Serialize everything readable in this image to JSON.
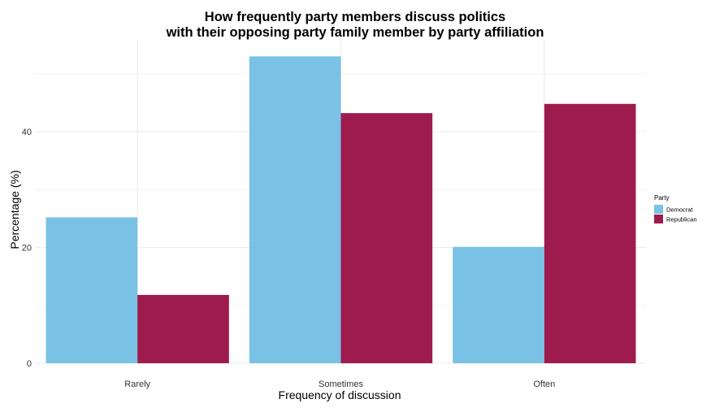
{
  "chart_data": {
    "type": "bar",
    "title_lines": [
      "How frequently party members discuss politics",
      "with their opposing party family member by party affiliation"
    ],
    "xlabel": "Frequency of discussion",
    "ylabel": "Percentage (%)",
    "categories": [
      "Rarely",
      "Sometimes",
      "Often"
    ],
    "series": [
      {
        "name": "Democrat",
        "color": "#79C2E5",
        "values": [
          25.2,
          53.0,
          20.1
        ]
      },
      {
        "name": "Republican",
        "color": "#9E1B4D",
        "values": [
          11.8,
          43.2,
          44.8
        ]
      }
    ],
    "ylim": [
      0,
      56
    ],
    "yticks": [
      0,
      20,
      40
    ],
    "ytick_labels": [
      "0",
      "20",
      "40"
    ],
    "grid": true,
    "legend": {
      "title": "Party",
      "position": "right"
    }
  }
}
